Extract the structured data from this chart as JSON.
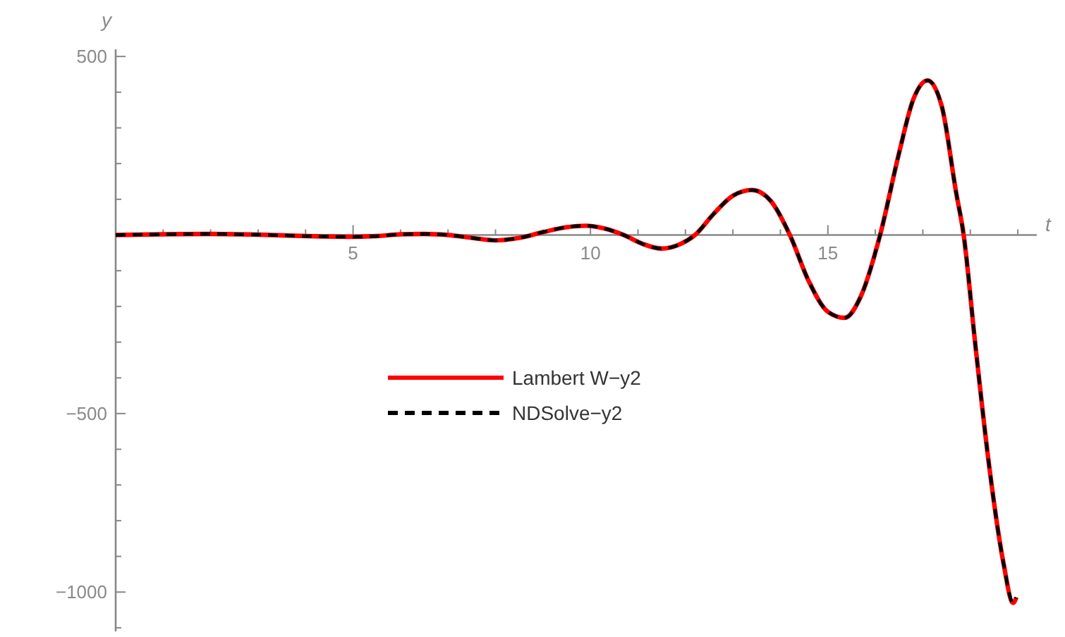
{
  "chart_data": {
    "type": "line",
    "xlabel": "t",
    "ylabel": "y",
    "xlim": [
      0,
      19.4
    ],
    "ylim": [
      -1110,
      520
    ],
    "xticks": [
      {
        "value": 1,
        "label": null
      },
      {
        "value": 2,
        "label": null
      },
      {
        "value": 3,
        "label": null
      },
      {
        "value": 4,
        "label": null
      },
      5,
      {
        "value": 6,
        "label": null
      },
      {
        "value": 7,
        "label": null
      },
      {
        "value": 8,
        "label": null
      },
      {
        "value": 9,
        "label": null
      },
      10,
      {
        "value": 11,
        "label": null
      },
      {
        "value": 12,
        "label": null
      },
      {
        "value": 13,
        "label": null
      },
      {
        "value": 14,
        "label": null
      },
      15,
      {
        "value": 16,
        "label": null
      },
      {
        "value": 17,
        "label": null
      },
      {
        "value": 18,
        "label": null
      },
      {
        "value": 19,
        "label": null
      }
    ],
    "yticks": [
      {
        "value": -1100,
        "label": null
      },
      -1000,
      {
        "value": -900,
        "label": null
      },
      {
        "value": -800,
        "label": null
      },
      {
        "value": -700,
        "label": null
      },
      {
        "value": -600,
        "label": null
      },
      -500,
      {
        "value": -400,
        "label": null
      },
      {
        "value": -300,
        "label": null
      },
      {
        "value": -200,
        "label": null
      },
      {
        "value": -100,
        "label": null
      },
      {
        "value": 0,
        "label": null
      },
      {
        "value": 100,
        "label": null
      },
      {
        "value": 200,
        "label": null
      },
      {
        "value": 300,
        "label": null
      },
      {
        "value": 400,
        "label": null
      },
      500
    ],
    "x": [
      0,
      1,
      2,
      3,
      4,
      5,
      5.5,
      6,
      6.5,
      7,
      7.5,
      8,
      8.5,
      9,
      9.5,
      9.9,
      10.3,
      10.7,
      11.1,
      11.5,
      11.9,
      12.2,
      12.6,
      13.0,
      13.4,
      13.8,
      14.2,
      14.6,
      15.0,
      15.35,
      15.7,
      16.1,
      16.5,
      16.8,
      17.1,
      17.4,
      17.7,
      17.86,
      18.1,
      18.4,
      18.7,
      18.9,
      18.97
    ],
    "series": [
      {
        "name": "Lambert W−y2",
        "color": "#ff0000",
        "line_style": "solid",
        "values": [
          0,
          2,
          3,
          1,
          -3,
          -5,
          -3,
          2,
          3,
          0,
          -8,
          -15,
          -8,
          8,
          22,
          26,
          18,
          0,
          -25,
          -38,
          -25,
          0,
          60,
          110,
          126,
          95,
          0,
          -130,
          -215,
          -232,
          -170,
          0,
          230,
          380,
          433,
          360,
          120,
          0,
          -300,
          -650,
          -920,
          -1030,
          -1015
        ]
      },
      {
        "name": "NDSolve−y2",
        "color": "#000000",
        "line_style": "dashed",
        "values": [
          0,
          2,
          3,
          1,
          -3,
          -5,
          -3,
          2,
          3,
          0,
          -8,
          -15,
          -8,
          8,
          22,
          26,
          18,
          0,
          -25,
          -38,
          -25,
          0,
          60,
          110,
          126,
          95,
          0,
          -130,
          -215,
          -232,
          -170,
          0,
          230,
          380,
          433,
          360,
          120,
          0,
          -300,
          -650,
          -920,
          -1030,
          -1015
        ]
      }
    ],
    "legend": "center"
  }
}
